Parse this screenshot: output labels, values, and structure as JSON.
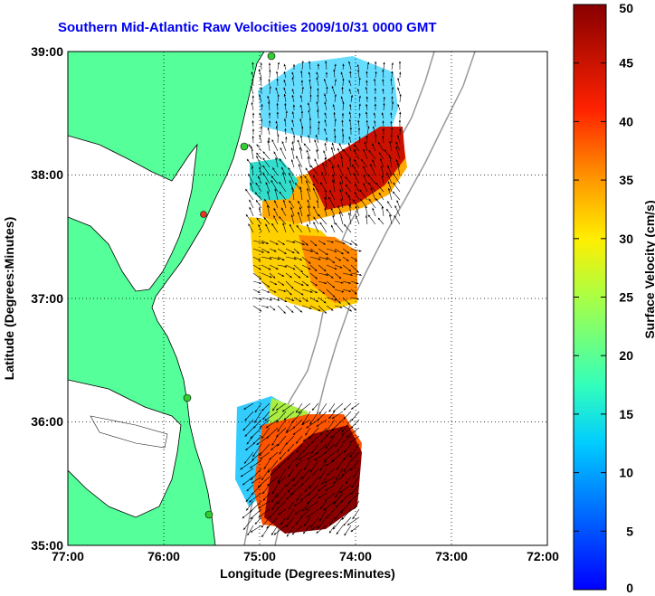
{
  "title": "Southern Mid-Atlantic Raw Velocities 2009/10/31 0000 GMT",
  "axes": {
    "xlabel": "Longitude (Degrees:Minutes)",
    "ylabel": "Latitude (Degrees:Minutes)",
    "x_ticks": [
      "77:00",
      "76:00",
      "75:00",
      "74:00",
      "73:00",
      "72:00"
    ],
    "y_ticks": [
      "39:00",
      "38:00",
      "37:00",
      "36:00",
      "35:00"
    ]
  },
  "colorbar": {
    "label": "Surface Velocity (cm/s)",
    "ticks": [
      "0",
      "5",
      "10",
      "15",
      "20",
      "25",
      "30",
      "35",
      "40",
      "45",
      "50"
    ],
    "range": [
      0,
      50
    ],
    "colormap": "jet"
  },
  "colors": {
    "land": "#55ff99",
    "title": "#0000ee",
    "station": "#33cc33",
    "station_alert": "#ee3322"
  }
}
